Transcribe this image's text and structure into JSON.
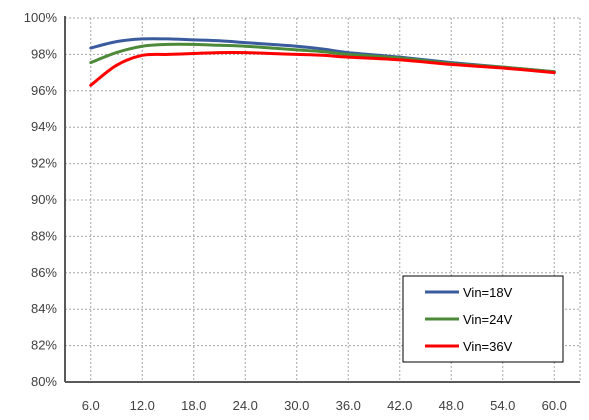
{
  "chart_data": {
    "type": "line",
    "title": "",
    "xlabel": "",
    "ylabel": "",
    "x": [
      6,
      9,
      12,
      15,
      18,
      21,
      24,
      27,
      30,
      33,
      36,
      42,
      48,
      54,
      60
    ],
    "xticks": [
      "6.0",
      "12.0",
      "18.0",
      "24.0",
      "30.0",
      "36.0",
      "42.0",
      "48.0",
      "54.0",
      "60.0"
    ],
    "yticks": [
      "80%",
      "82%",
      "84%",
      "86%",
      "88%",
      "90%",
      "92%",
      "94%",
      "96%",
      "98%",
      "100%"
    ],
    "ylim": [
      80,
      100
    ],
    "grid": true,
    "legend_position": "bottom-right",
    "series": [
      {
        "name": "Vin=18V",
        "color": "#3a5c9e",
        "values": [
          98.35,
          98.7,
          98.85,
          98.85,
          98.8,
          98.75,
          98.65,
          98.55,
          98.45,
          98.3,
          98.1,
          97.85,
          97.55,
          97.3,
          97.05
        ]
      },
      {
        "name": "Vin=24V",
        "color": "#4c8a3a",
        "values": [
          97.55,
          98.1,
          98.45,
          98.55,
          98.55,
          98.5,
          98.45,
          98.35,
          98.25,
          98.15,
          98.0,
          97.8,
          97.5,
          97.3,
          97.05
        ]
      },
      {
        "name": "Vin=36V",
        "color": "#ff0000",
        "values": [
          96.3,
          97.4,
          97.95,
          98.0,
          98.05,
          98.1,
          98.1,
          98.05,
          98.0,
          97.95,
          97.85,
          97.7,
          97.45,
          97.25,
          97.0
        ]
      }
    ]
  }
}
